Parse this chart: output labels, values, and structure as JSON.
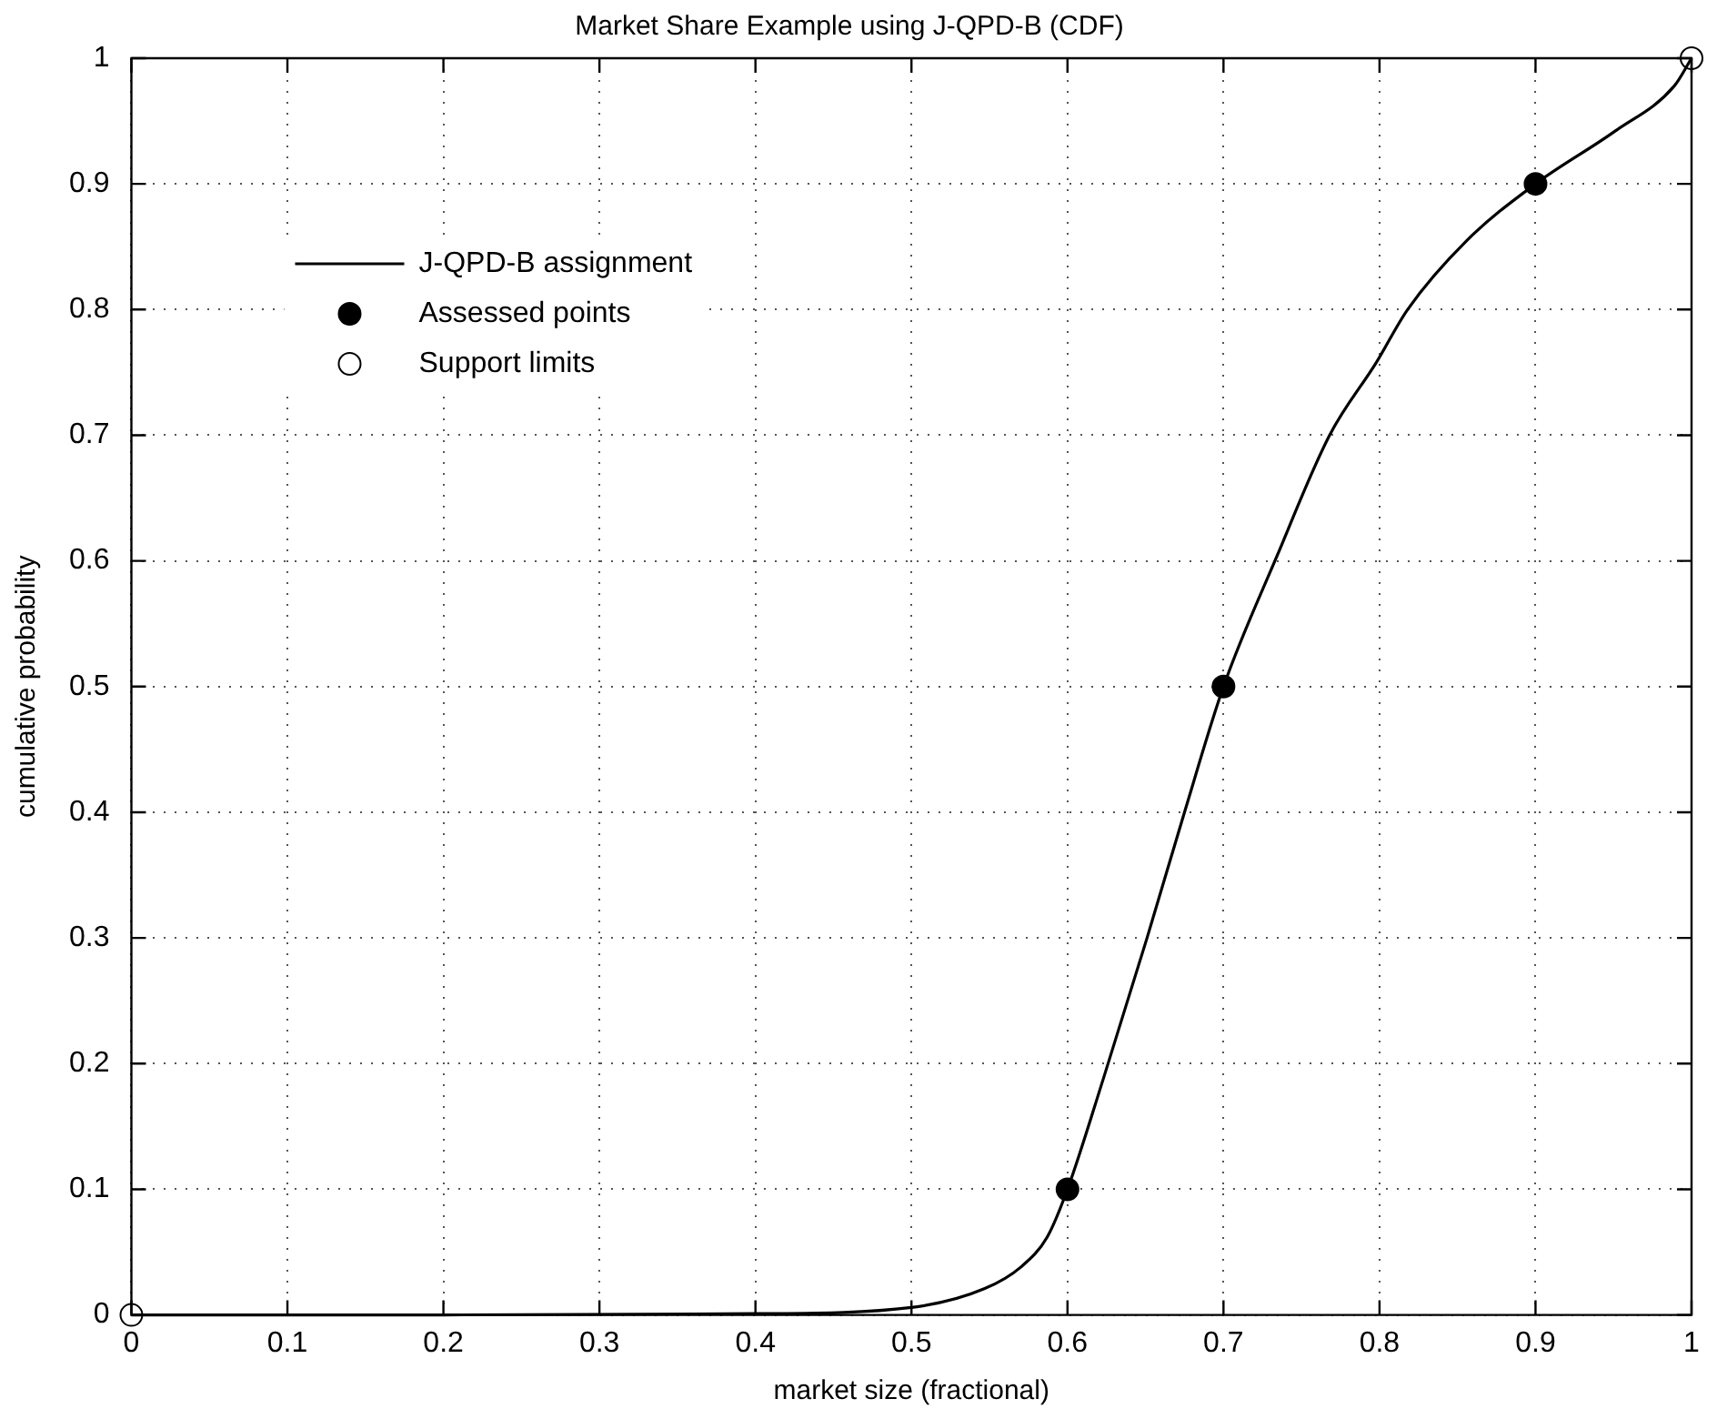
{
  "chart_data": {
    "type": "line",
    "title": "Market Share Example using J-QPD-B (CDF)",
    "xlabel": "market size (fractional)",
    "ylabel": "cumulative probability",
    "xlim": [
      0,
      1
    ],
    "ylim": [
      0,
      1
    ],
    "xticks": [
      0,
      0.1,
      0.2,
      0.3,
      0.4,
      0.5,
      0.6,
      0.7,
      0.8,
      0.9,
      1
    ],
    "yticks": [
      0,
      0.1,
      0.2,
      0.3,
      0.4,
      0.5,
      0.6,
      0.7,
      0.8,
      0.9,
      1
    ],
    "grid": true,
    "legend": "top left",
    "line_style": "solid",
    "series": [
      {
        "name": "J-QPD-B assignment",
        "color": "#000000",
        "marker": "none",
        "x": [
          0,
          0.2,
          0.4,
          0.5,
          0.547,
          0.57,
          0.587,
          0.6,
          0.623,
          0.651,
          0.675,
          0.7,
          0.734,
          0.768,
          0.798,
          0.818,
          0.856,
          0.9,
          0.951,
          0.989,
          1
        ],
        "values": [
          0,
          0,
          0.001,
          0.006,
          0.021,
          0.038,
          0.062,
          0.1,
          0.188,
          0.3,
          0.4,
          0.5,
          0.603,
          0.7,
          0.758,
          0.8,
          0.855,
          0.9,
          0.942,
          0.978,
          1
        ]
      },
      {
        "name": "Assessed points",
        "type": "scatter",
        "color": "#000000",
        "marker": "circle",
        "x": [
          0.6,
          0.7,
          0.9
        ],
        "values": [
          0.1,
          0.5,
          0.9
        ]
      },
      {
        "name": "Support limits",
        "type": "scatter",
        "color": "#ffffff",
        "marker": "circle",
        "x": [
          0,
          1
        ],
        "values": [
          0,
          1
        ]
      }
    ]
  }
}
